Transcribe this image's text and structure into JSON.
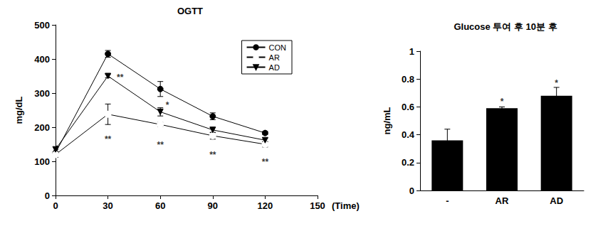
{
  "chart_data": [
    {
      "type": "line",
      "title": "OGTT",
      "x_label": "(Time)",
      "y_label": "mg/dL",
      "x": [
        0,
        30,
        60,
        90,
        120
      ],
      "series": [
        {
          "name": "CON",
          "color": "#000000",
          "marker": "circle",
          "values": [
            125,
            415,
            312,
            232,
            183
          ],
          "errors": [
            10,
            10,
            22,
            10,
            5
          ]
        },
        {
          "name": "AR",
          "color": "#000000",
          "marker": "open_circle",
          "values": [
            120,
            238,
            208,
            175,
            150
          ],
          "errors": [
            8,
            30,
            6,
            10,
            8
          ]
        },
        {
          "name": "AD",
          "color": "#000000",
          "marker": "triangle_down",
          "values": [
            135,
            350,
            245,
            192,
            162
          ],
          "errors": [
            10,
            5,
            12,
            8,
            5
          ]
        }
      ],
      "xlim": [
        0,
        150
      ],
      "xticks": [
        0,
        30,
        60,
        90,
        120,
        150
      ],
      "ylim": [
        0,
        500
      ],
      "yticks": [
        0,
        100,
        200,
        300,
        400,
        500
      ],
      "grid": false,
      "legend": "upper right",
      "annotations": [
        {
          "x": 37,
          "y": 345,
          "text": "**"
        },
        {
          "x": 64,
          "y": 265,
          "text": "*"
        },
        {
          "x": 30,
          "y": 165,
          "text": "**"
        },
        {
          "x": 60,
          "y": 148,
          "text": "**"
        },
        {
          "x": 90,
          "y": 118,
          "text": "**"
        },
        {
          "x": 120,
          "y": 98,
          "text": "**"
        }
      ]
    },
    {
      "type": "bar",
      "title": "Glucose 투여 후 10분 후",
      "y_label": "ng/mL",
      "categories": [
        "-",
        "AR",
        "AD"
      ],
      "values": [
        0.36,
        0.59,
        0.68
      ],
      "errors": [
        0.08,
        0.01,
        0.06
      ],
      "color": "#000000",
      "ylim": [
        0,
        1
      ],
      "yticks": [
        0,
        0.2,
        0.4,
        0.6,
        0.8,
        1
      ],
      "grid": false,
      "annotations": [
        {
          "x": "AR",
          "y": 0.64,
          "text": "*"
        },
        {
          "x": "AD",
          "y": 0.77,
          "text": "*"
        }
      ]
    }
  ]
}
